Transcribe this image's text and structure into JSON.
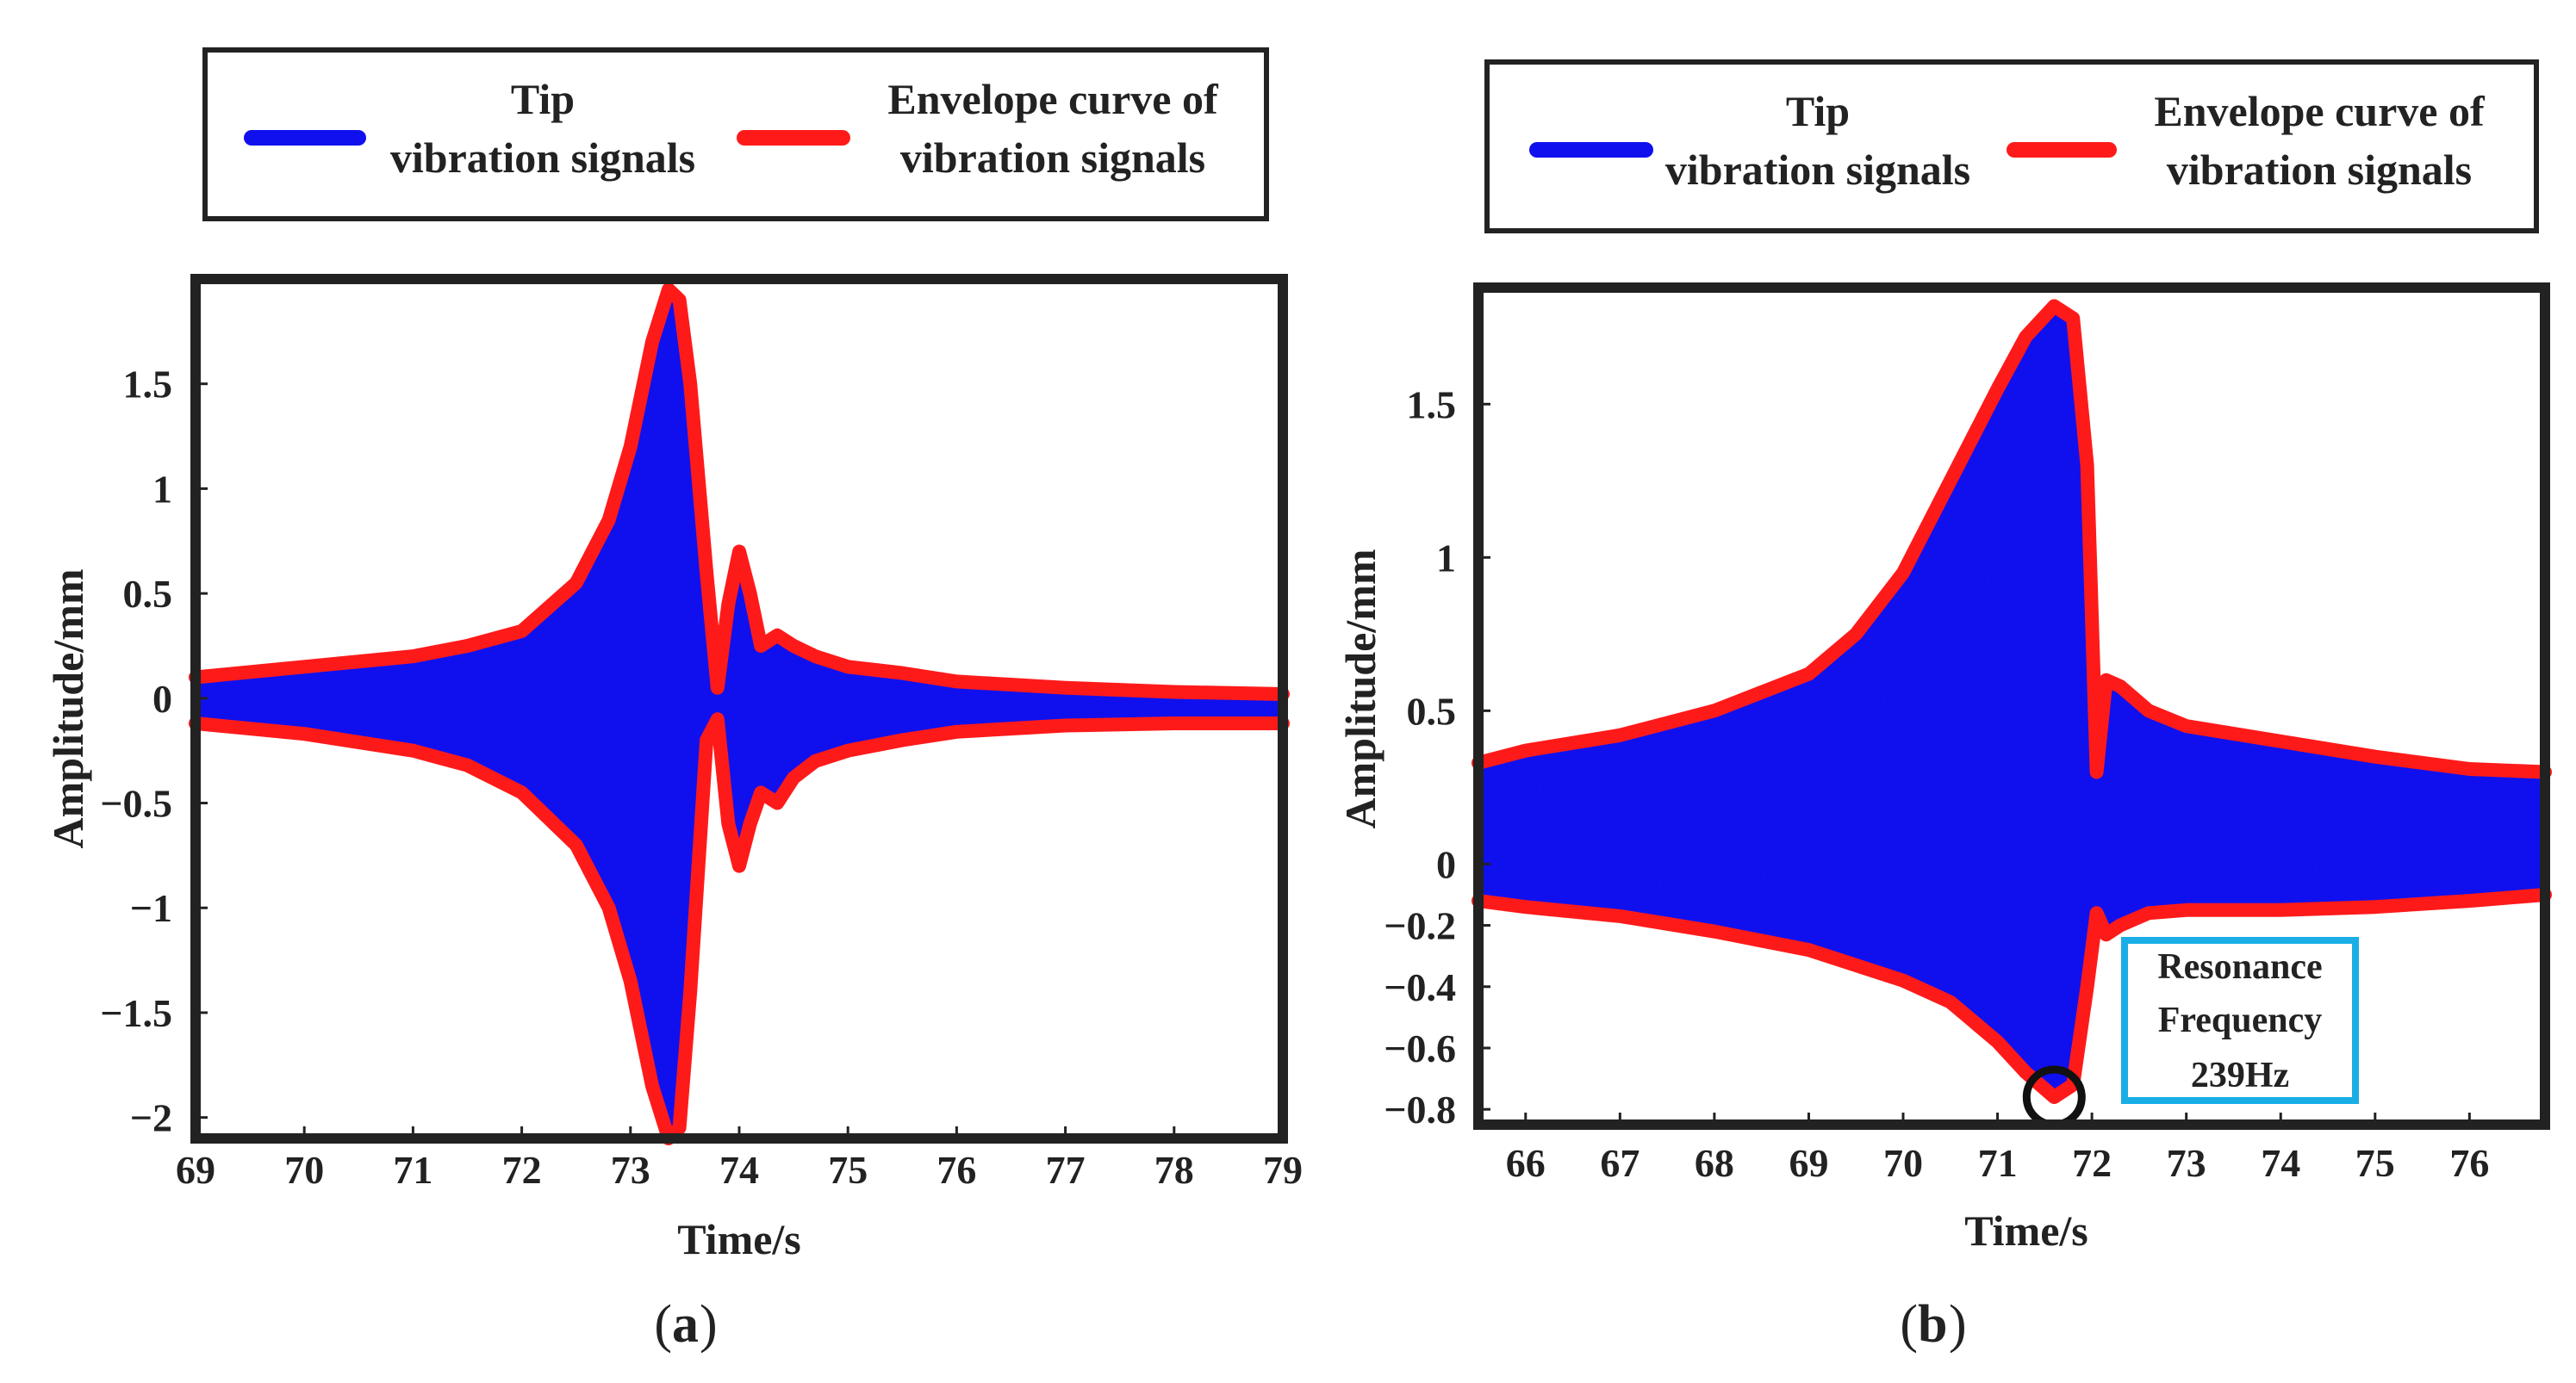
{
  "chart_data": [
    {
      "type": "line",
      "panel": "a",
      "caption_open": "(",
      "caption_letter": "a",
      "caption_close": ")",
      "xlabel": "Time/s",
      "ylabel": "Amplitude/mm",
      "xlim": [
        69,
        79
      ],
      "ylim": [
        -2.1,
        2.0
      ],
      "xticks": [
        69,
        70,
        71,
        72,
        73,
        74,
        75,
        76,
        77,
        78,
        79
      ],
      "xtick_labels": [
        "69",
        "70",
        "71",
        "72",
        "73",
        "74",
        "75",
        "76",
        "77",
        "78",
        "79"
      ],
      "yticks": [
        1.5,
        1,
        0.5,
        0,
        -0.5,
        -1,
        -1.5,
        -2
      ],
      "ytick_labels": [
        "1.5",
        "1",
        "0.5",
        "0",
        "−0.5",
        "−1",
        "−1.5",
        "−2"
      ],
      "legend": {
        "placement": "top",
        "entries": [
          {
            "line1": "Tip",
            "line2": "vibration signals",
            "color": "#1010ee"
          },
          {
            "line1": "Envelope curve of",
            "line2": "vibration signals",
            "color": "#ff1a1a"
          }
        ]
      },
      "series": [
        {
          "name": "Envelope upper",
          "color": "#ff1a1a",
          "x": [
            69.0,
            70.0,
            71.0,
            71.5,
            72.0,
            72.5,
            72.8,
            73.0,
            73.2,
            73.35,
            73.45,
            73.55,
            73.7,
            73.8,
            73.9,
            74.0,
            74.1,
            74.2,
            74.35,
            74.5,
            74.7,
            75.0,
            75.5,
            76.0,
            77.0,
            78.0,
            79.0
          ],
          "values": [
            0.1,
            0.15,
            0.2,
            0.25,
            0.32,
            0.55,
            0.85,
            1.2,
            1.7,
            1.95,
            1.9,
            1.5,
            0.6,
            0.05,
            0.45,
            0.7,
            0.5,
            0.25,
            0.3,
            0.25,
            0.2,
            0.15,
            0.12,
            0.08,
            0.05,
            0.03,
            0.02
          ]
        },
        {
          "name": "Envelope lower",
          "color": "#ff1a1a",
          "x": [
            69.0,
            70.0,
            71.0,
            71.5,
            72.0,
            72.5,
            72.8,
            73.0,
            73.2,
            73.35,
            73.45,
            73.55,
            73.7,
            73.8,
            73.9,
            74.0,
            74.1,
            74.2,
            74.35,
            74.5,
            74.7,
            75.0,
            75.5,
            76.0,
            77.0,
            78.0,
            79.0
          ],
          "values": [
            -0.12,
            -0.17,
            -0.25,
            -0.32,
            -0.45,
            -0.7,
            -1.0,
            -1.35,
            -1.85,
            -2.1,
            -2.05,
            -1.4,
            -0.2,
            -0.1,
            -0.6,
            -0.8,
            -0.6,
            -0.45,
            -0.5,
            -0.38,
            -0.3,
            -0.25,
            -0.2,
            -0.16,
            -0.13,
            -0.12,
            -0.12
          ]
        },
        {
          "name": "Tip vibration signals",
          "color": "#1010ee",
          "note": "dense oscillation filling the envelope band"
        }
      ]
    },
    {
      "type": "line",
      "panel": "b",
      "caption_open": "(",
      "caption_letter": "b",
      "caption_close": ")",
      "xlabel": "Time/s",
      "ylabel": "Amplitude/mm",
      "xlim": [
        65.5,
        76.8
      ],
      "ylim": [
        -0.85,
        1.88
      ],
      "xticks": [
        66,
        67,
        68,
        69,
        70,
        71,
        72,
        73,
        74,
        75,
        76
      ],
      "xtick_labels": [
        "66",
        "67",
        "68",
        "69",
        "70",
        "71",
        "72",
        "73",
        "74",
        "75",
        "76"
      ],
      "yticks": [
        1.5,
        1,
        0.5,
        0,
        -0.2,
        -0.4,
        -0.6,
        -0.8
      ],
      "ytick_labels": [
        "1.5",
        "1",
        "0.5",
        "0",
        "−0.2",
        "−0.4",
        "−0.6",
        "−0.8"
      ],
      "legend": {
        "placement": "top",
        "entries": [
          {
            "line1": "Tip",
            "line2": "vibration signals",
            "color": "#1010ee"
          },
          {
            "line1": "Envelope curve of",
            "line2": "vibration signals",
            "color": "#ff1a1a"
          }
        ]
      },
      "annotation": {
        "line1": "Resonance",
        "line2": "Frequency",
        "line3": "239Hz",
        "box_color": "#19aee6",
        "marker_x": 71.6,
        "marker_y": -0.76
      },
      "series": [
        {
          "name": "Envelope upper",
          "color": "#ff1a1a",
          "x": [
            65.5,
            66.0,
            67.0,
            68.0,
            69.0,
            69.5,
            70.0,
            70.5,
            71.0,
            71.3,
            71.6,
            71.8,
            71.95,
            72.05,
            72.15,
            72.3,
            72.6,
            73.0,
            74.0,
            75.0,
            76.0,
            76.8
          ],
          "values": [
            0.33,
            0.37,
            0.42,
            0.5,
            0.62,
            0.75,
            0.95,
            1.25,
            1.55,
            1.72,
            1.82,
            1.78,
            1.3,
            0.3,
            0.6,
            0.58,
            0.5,
            0.45,
            0.4,
            0.35,
            0.31,
            0.3
          ]
        },
        {
          "name": "Envelope lower",
          "color": "#ff1a1a",
          "x": [
            65.5,
            66.0,
            67.0,
            68.0,
            69.0,
            69.5,
            70.0,
            70.5,
            71.0,
            71.3,
            71.6,
            71.8,
            71.95,
            72.05,
            72.15,
            72.3,
            72.6,
            73.0,
            74.0,
            75.0,
            76.0,
            76.8
          ],
          "values": [
            -0.12,
            -0.14,
            -0.17,
            -0.22,
            -0.28,
            -0.33,
            -0.38,
            -0.45,
            -0.58,
            -0.68,
            -0.76,
            -0.72,
            -0.4,
            -0.16,
            -0.23,
            -0.2,
            -0.16,
            -0.15,
            -0.15,
            -0.14,
            -0.12,
            -0.1
          ]
        },
        {
          "name": "Tip vibration signals",
          "color": "#1010ee",
          "note": "dense oscillation filling the envelope band"
        }
      ]
    }
  ]
}
